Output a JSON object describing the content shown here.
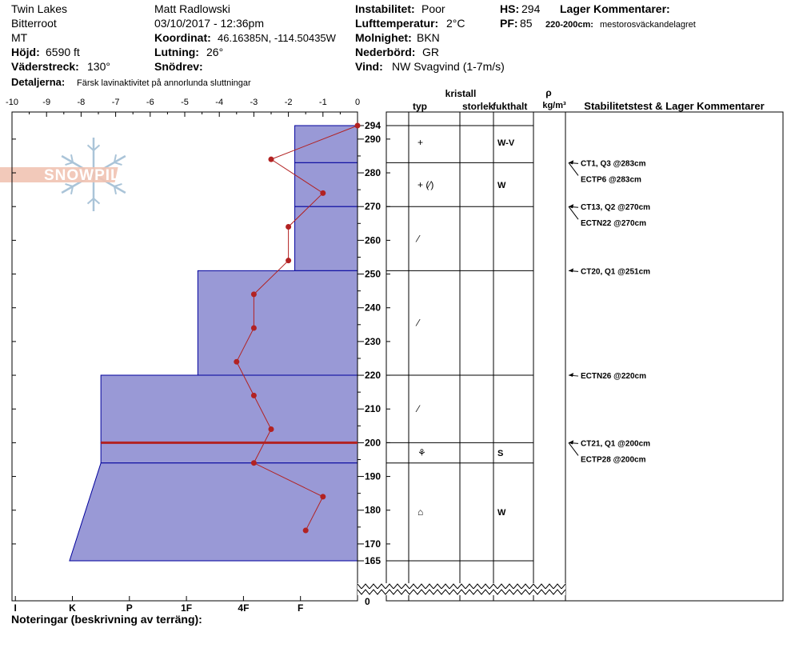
{
  "header": {
    "location": "Twin Lakes",
    "range": "Bitterroot",
    "state": "MT",
    "elevation_label": "Höjd:",
    "elevation_value": "6590 ft",
    "aspect_label": "Väderstreck:",
    "aspect_value": "130°",
    "details_label": "Detaljerna:",
    "details_value": "Färsk lavinaktivitet på annorlunda sluttningar",
    "observer": "Matt Radlowski",
    "datetime": "03/10/2017 - 12:36pm",
    "coord_label": "Koordinat:",
    "coord_value": "46.16385N, -114.50435W",
    "slope_label": "Lutning:",
    "slope_value": "26°",
    "drift_label": "Snödrev:",
    "drift_value": "",
    "instability_label": "Instabilitet:",
    "instability_value": "Poor",
    "airtemp_label": "Lufttemperatur:",
    "airtemp_value": "2°C",
    "sky_label": "Molnighet:",
    "sky_value": "BKN",
    "precip_label": "Nederbörd:",
    "precip_value": "GR",
    "wind_label": "Vind:",
    "wind_value": "NW Svagvind (1-7m/s)",
    "hs_label": "HS:",
    "hs_value": "294",
    "pf_label": "PF:",
    "pf_value": "85",
    "layer_comments_label": "Lager Kommentarer:",
    "layer_comment_range": "220-200cm:",
    "layer_comment_text": "mestorosväckandelagret"
  },
  "logo_text": "SNOWPILOT",
  "notes_label": "Noteringar (beskrivning av terräng):",
  "colors": {
    "hardness_fill": "#9999d6",
    "hardness_edge": "#00009c",
    "temp_line": "#b22222",
    "weak_layer": "#b22222",
    "logo": "#f1c3b2",
    "flake": "#aac4d8"
  },
  "chart_data": {
    "type": "line",
    "temperature": {
      "xlabel": "",
      "xlim": [
        -10,
        0
      ],
      "xticks": [
        "-10",
        "-9",
        "-8",
        "-7",
        "-6",
        "-5",
        "-4",
        "-3",
        "-2",
        "-1",
        "0"
      ],
      "points": [
        {
          "temp": 0,
          "height": 294
        },
        {
          "temp": -2.5,
          "height": 284
        },
        {
          "temp": -1,
          "height": 274
        },
        {
          "temp": -2,
          "height": 264
        },
        {
          "temp": -2,
          "height": 254
        },
        {
          "temp": -3,
          "height": 244
        },
        {
          "temp": -3,
          "height": 234
        },
        {
          "temp": -3.5,
          "height": 224
        },
        {
          "temp": -3,
          "height": 214
        },
        {
          "temp": -2.5,
          "height": 204
        },
        {
          "temp": -3,
          "height": 194
        },
        {
          "temp": -1,
          "height": 184
        },
        {
          "temp": -1.5,
          "height": 174
        }
      ]
    },
    "hardness_axis": {
      "labels": [
        "I",
        "K",
        "P",
        "1F",
        "4F",
        "F"
      ],
      "max_hardness": 6
    },
    "height_axis": {
      "ylim": [
        165,
        294
      ],
      "ticks": [
        "294",
        "290",
        "280",
        "270",
        "260",
        "250",
        "240",
        "230",
        "220",
        "210",
        "200",
        "190",
        "180",
        "170",
        "165"
      ],
      "ground_label": "0"
    },
    "hardness_profile": [
      {
        "top": 294,
        "bottom": 283,
        "hardness_top": 1.1,
        "hardness_bottom": 1.1
      },
      {
        "top": 283,
        "bottom": 270,
        "hardness_top": 1.1,
        "hardness_bottom": 1.1
      },
      {
        "top": 270,
        "bottom": 251,
        "hardness_top": 1.1,
        "hardness_bottom": 1.1
      },
      {
        "top": 251,
        "bottom": 220,
        "hardness_top": 2.8,
        "hardness_bottom": 2.8
      },
      {
        "top": 220,
        "bottom": 200,
        "hardness_top": 4.5,
        "hardness_bottom": 4.5
      },
      {
        "top": 200,
        "bottom": 194,
        "hardness_top": 4.5,
        "hardness_bottom": 4.5
      },
      {
        "top": 194,
        "bottom": 165,
        "hardness_top": 4.5,
        "hardness_bottom": 5.05
      }
    ],
    "weak_layer_height": 200,
    "columns": {
      "kristall": "kristall",
      "typ": "typ",
      "storlek": "storlek",
      "fukthalt": "fukthalt",
      "rho": "ρ",
      "density_unit": "kg/m³",
      "stability": "Stabilitetstest & Lager Kommentarer"
    },
    "layer_lines": [
      294,
      283,
      270,
      251,
      220,
      200,
      194,
      165
    ],
    "layers": [
      {
        "center": 289,
        "type": "+",
        "moisture": "W-V"
      },
      {
        "center": 276.5,
        "type": "+ (⁄)",
        "moisture": "W"
      },
      {
        "center": 260.5,
        "type": "⁄",
        "moisture": ""
      },
      {
        "center": 235.5,
        "type": "⁄",
        "moisture": ""
      },
      {
        "center": 210,
        "type": "⁄",
        "moisture": ""
      },
      {
        "center": 197,
        "type": "⚘",
        "moisture": "S"
      },
      {
        "center": 179.5,
        "type": "⌂",
        "moisture": "W"
      }
    ],
    "tests": [
      {
        "text": "CT1, Q3 @283cm",
        "height": 283,
        "row": 0
      },
      {
        "text": "ECTP6 @283cm",
        "height": 283,
        "row": 1
      },
      {
        "text": "CT13, Q2 @270cm",
        "height": 270,
        "row": 0
      },
      {
        "text": "ECTN22 @270cm",
        "height": 270,
        "row": 1
      },
      {
        "text": "CT20, Q1 @251cm",
        "height": 251,
        "row": 0
      },
      {
        "text": "ECTN26 @220cm",
        "height": 220,
        "row": 0
      },
      {
        "text": "CT21, Q1 @200cm",
        "height": 200,
        "row": 0
      },
      {
        "text": "ECTP28 @200cm",
        "height": 200,
        "row": 1
      }
    ]
  }
}
